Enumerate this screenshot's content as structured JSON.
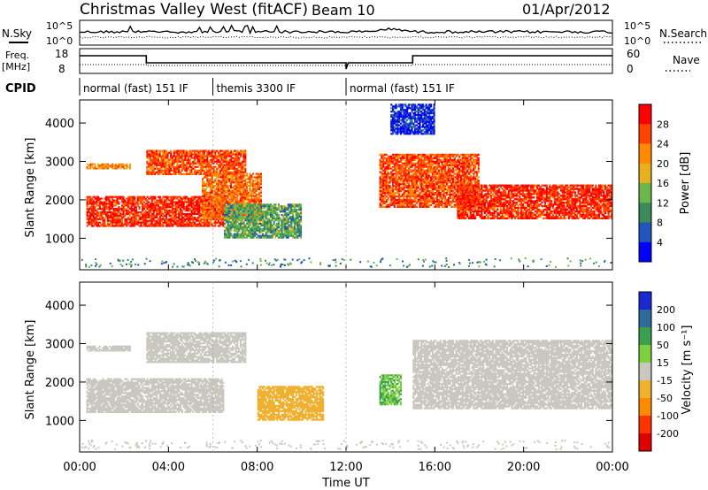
{
  "header": {
    "title": "Christmas Valley West (fitACF)",
    "beam": "Beam 10",
    "date": "01/Apr/2012"
  },
  "left_labels": {
    "nsky": "N.Sky",
    "freq": "Freq.",
    "freq_unit": "[MHz]",
    "cpid": "CPID"
  },
  "right_labels": {
    "nsearch": "N.Search",
    "nave": "Nave"
  },
  "ticks": {
    "noise_top": "10^5",
    "noise_bottom": "10^0",
    "freq_top": "18",
    "freq_bottom": "8",
    "nave_top": "60",
    "nave_bottom": "0"
  },
  "cpid_segments": [
    {
      "label": "normal (fast) 151 IF",
      "start_h": 0,
      "end_h": 6
    },
    {
      "label": "themis 3300 IF",
      "start_h": 6,
      "end_h": 12
    },
    {
      "label": "normal (fast) 151 IF",
      "start_h": 12,
      "end_h": 24
    }
  ],
  "time_axis": {
    "label": "Time UT",
    "ticks": [
      "00:00",
      "04:00",
      "08:00",
      "12:00",
      "16:00",
      "20:00",
      "00:00"
    ]
  },
  "power_panel": {
    "ylabel": "Slant Range [km]",
    "yticks": [
      "1000",
      "2000",
      "3000",
      "4000"
    ],
    "colorbar_label": "Power [dB]",
    "colorbar_ticks": [
      "4",
      "8",
      "12",
      "16",
      "20",
      "24",
      "28"
    ],
    "colors": [
      "#0000ff",
      "#2255bb",
      "#3a8a5a",
      "#6bb84a",
      "#e8b020",
      "#ff8a00",
      "#ff4400",
      "#ff0000"
    ]
  },
  "velocity_panel": {
    "ylabel": "Slant Range [km]",
    "yticks": [
      "1000",
      "2000",
      "3000",
      "4000"
    ],
    "colorbar_label": "Velocity [m s⁻¹]",
    "colorbar_ticks": [
      "200",
      "100",
      "50",
      "15",
      "-15",
      "-50",
      "-100",
      "-200"
    ],
    "colors": [
      "#1a2ad0",
      "#2e6a9a",
      "#3aa050",
      "#7fd040",
      "#c8c8c0",
      "#f0b030",
      "#ff8a00",
      "#ff3300",
      "#e00000"
    ]
  },
  "chart_data": [
    {
      "type": "heatmap",
      "title": "Power",
      "xlabel": "Time UT",
      "ylabel": "Slant Range [km]",
      "xlim_hours": [
        0,
        24
      ],
      "ylim_km": [
        180,
        4600
      ],
      "clim_db": [
        0,
        32
      ],
      "regions": [
        {
          "t": [
            0.3,
            6.5
          ],
          "r": [
            1300,
            2100
          ],
          "level": 28
        },
        {
          "t": [
            0.3,
            2.3
          ],
          "r": [
            2800,
            2950
          ],
          "level": 22
        },
        {
          "t": [
            3.0,
            7.5
          ],
          "r": [
            2650,
            3300
          ],
          "level": 26
        },
        {
          "t": [
            5.5,
            8.2
          ],
          "r": [
            1500,
            2700
          ],
          "level": 24
        },
        {
          "t": [
            6.5,
            10.0
          ],
          "r": [
            1000,
            1900
          ],
          "level": 12
        },
        {
          "t": [
            13.5,
            18.0
          ],
          "r": [
            1800,
            3200
          ],
          "level": 26
        },
        {
          "t": [
            17.0,
            24.0
          ],
          "r": [
            1500,
            2400
          ],
          "level": 28
        },
        {
          "t": [
            14.0,
            16.0
          ],
          "r": [
            3700,
            4500
          ],
          "level": 4
        }
      ]
    },
    {
      "type": "heatmap",
      "title": "Velocity",
      "xlabel": "Time UT",
      "ylabel": "Slant Range [km]",
      "xlim_hours": [
        0,
        24
      ],
      "ylim_km": [
        180,
        4600
      ],
      "clim_ms": [
        -250,
        250
      ],
      "regions": [
        {
          "t": [
            0.3,
            6.5
          ],
          "r": [
            1200,
            2100
          ],
          "velocity": 0
        },
        {
          "t": [
            0.3,
            2.3
          ],
          "r": [
            2800,
            2950
          ],
          "velocity": 0
        },
        {
          "t": [
            3.0,
            7.5
          ],
          "r": [
            2500,
            3300
          ],
          "velocity": 0
        },
        {
          "t": [
            8.0,
            11.0
          ],
          "r": [
            1000,
            1900
          ],
          "velocity": -60
        },
        {
          "t": [
            13.5,
            14.5
          ],
          "r": [
            1400,
            2200
          ],
          "velocity": 80
        },
        {
          "t": [
            15.0,
            24.0
          ],
          "r": [
            1300,
            3100
          ],
          "velocity": 0
        }
      ]
    }
  ]
}
